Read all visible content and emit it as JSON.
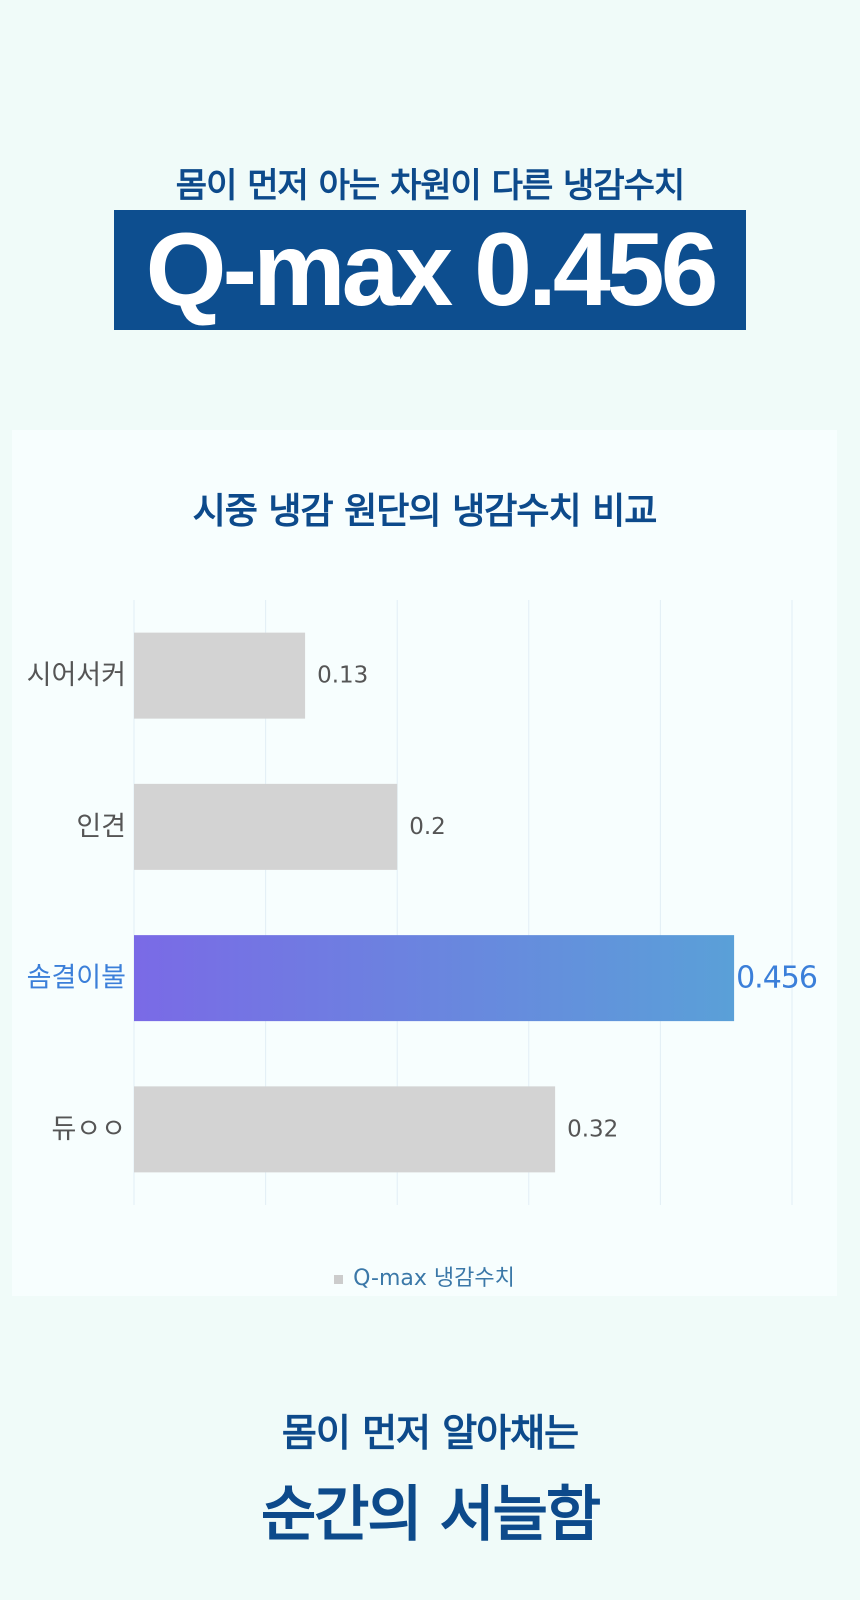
{
  "hero": {
    "subtitle": "몸이 먼저 아는 차원이 다른 냉감수치",
    "title": "Q-max 0.456"
  },
  "chart_data": {
    "type": "bar",
    "orientation": "horizontal",
    "title": "시중 냉감 원단의 냉감수치 비교",
    "categories": [
      "시어서커",
      "인견",
      "솜결이불",
      "듀ㅇㅇ"
    ],
    "series": [
      {
        "name": "Q-max 냉감수치",
        "values": [
          0.13,
          0.2,
          0.456,
          0.32
        ]
      }
    ],
    "data_labels": [
      "0.13",
      "0.2",
      "0.456",
      "0.32"
    ],
    "highlight_index": 2,
    "xlim": [
      0,
      0.5
    ],
    "grid": true,
    "legend_position": "bottom",
    "colors": {
      "bar": "#d3d3d3",
      "highlight_start": "#7a6ae6",
      "highlight_end": "#5aa0d8",
      "highlight_text": "#3b7fd9",
      "label_text": "#555555",
      "grid": "#e2eef5"
    }
  },
  "footer": {
    "subtitle": "몸이 먼저 알아채는",
    "title": "순간의 서늘함"
  }
}
